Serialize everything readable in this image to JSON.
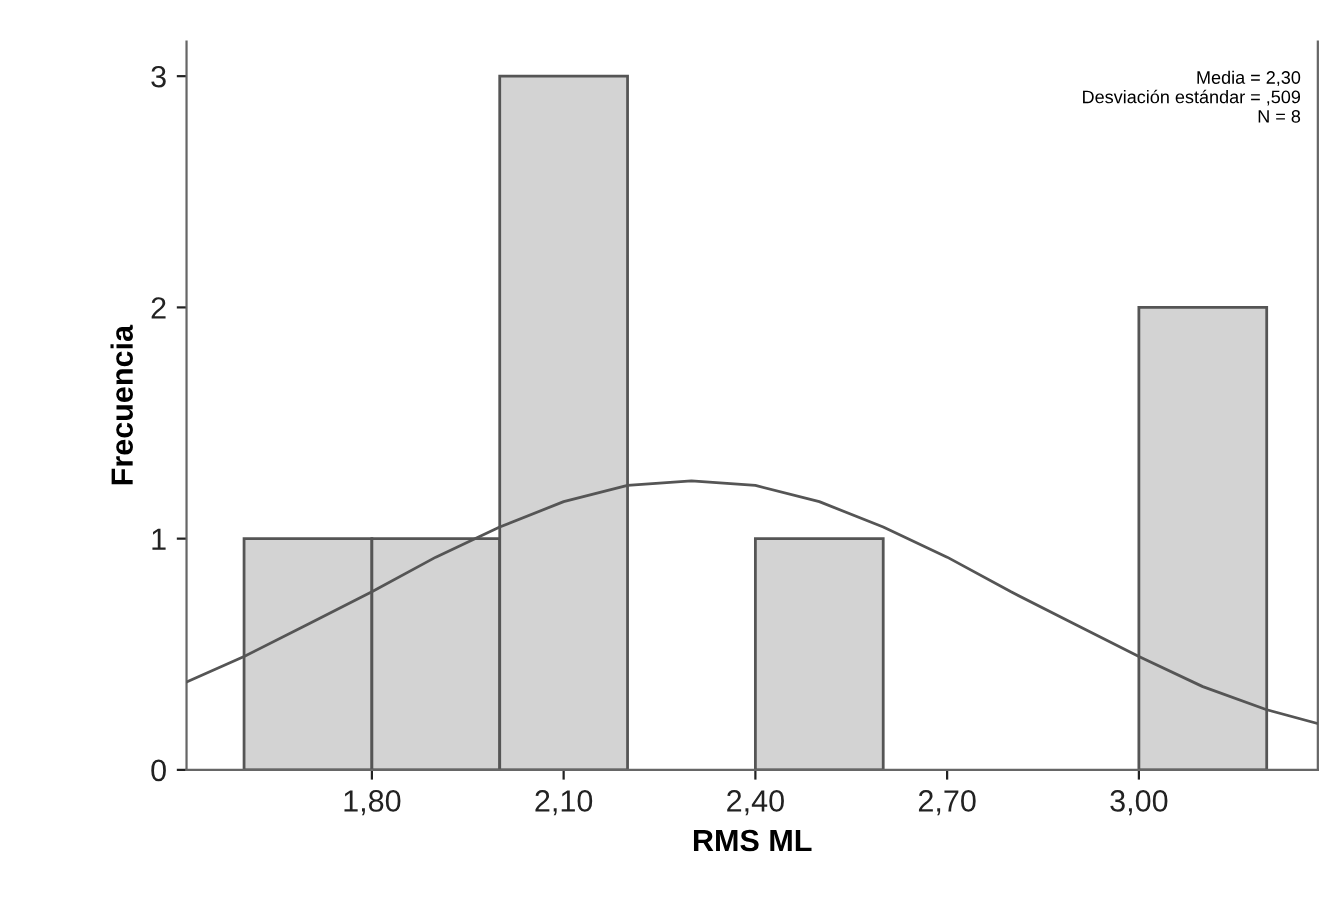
{
  "chart_data": {
    "type": "histogram",
    "xlabel": "RMS ML",
    "ylabel": "Frecuencia",
    "annotations": [
      "Media = 2,30\nDesviación estándar = ,509\nN = 8"
    ],
    "xlim": [
      1.51,
      3.28
    ],
    "xticks": [
      {
        "value": 1.8,
        "label": "1,80"
      },
      {
        "value": 2.1,
        "label": "2,10"
      },
      {
        "value": 2.4,
        "label": "2,40"
      },
      {
        "value": 2.7,
        "label": "2,70"
      },
      {
        "value": 3.0,
        "label": "3,00"
      }
    ],
    "ylim": [
      0,
      3.15
    ],
    "yticks": [
      0,
      1,
      2,
      3
    ],
    "grid": false,
    "series": [
      {
        "color": "#d3d3d3",
        "bins": [
          1.6,
          1.8,
          2.0,
          2.2,
          2.4,
          2.6,
          2.8,
          3.0,
          3.2
        ],
        "values": [
          1,
          1,
          3,
          0,
          1,
          0,
          0,
          2
        ]
      },
      {
        "type": "line",
        "color": "#555555",
        "x": [
          1.51,
          1.6,
          1.7,
          1.8,
          1.9,
          2.0,
          2.1,
          2.2,
          2.3,
          2.4,
          2.5,
          2.6,
          2.7,
          2.8,
          2.9,
          3.0,
          3.1,
          3.2,
          3.28
        ],
        "values": [
          0.38,
          0.49,
          0.63,
          0.77,
          0.92,
          1.05,
          1.16,
          1.23,
          1.25,
          1.23,
          1.16,
          1.05,
          0.92,
          0.77,
          0.63,
          0.49,
          0.36,
          0.26,
          0.2
        ]
      }
    ]
  }
}
